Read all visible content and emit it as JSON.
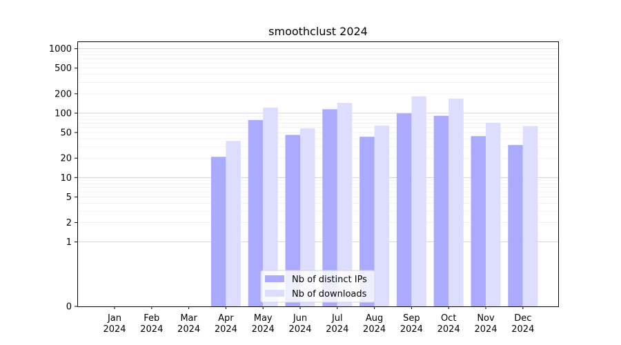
{
  "chart_data": {
    "type": "bar",
    "title": "smoothclust 2024",
    "xlabel": "",
    "ylabel": "",
    "y_scale": "symlog",
    "yticks": [
      "0",
      "1",
      "2",
      "5",
      "10",
      "20",
      "50",
      "100",
      "200",
      "500",
      "1000"
    ],
    "categories": [
      {
        "month": "Jan",
        "year": "2024"
      },
      {
        "month": "Feb",
        "year": "2024"
      },
      {
        "month": "Mar",
        "year": "2024"
      },
      {
        "month": "Apr",
        "year": "2024"
      },
      {
        "month": "May",
        "year": "2024"
      },
      {
        "month": "Jun",
        "year": "2024"
      },
      {
        "month": "Jul",
        "year": "2024"
      },
      {
        "month": "Aug",
        "year": "2024"
      },
      {
        "month": "Sep",
        "year": "2024"
      },
      {
        "month": "Oct",
        "year": "2024"
      },
      {
        "month": "Nov",
        "year": "2024"
      },
      {
        "month": "Dec",
        "year": "2024"
      }
    ],
    "series": [
      {
        "name": "Nb of distinct IPs",
        "color": "#aaaaff",
        "values": [
          0,
          0,
          0,
          21,
          78,
          46,
          115,
          43,
          99,
          91,
          44,
          32
        ]
      },
      {
        "name": "Nb of downloads",
        "color": "#ddddff",
        "values": [
          0,
          0,
          0,
          37,
          122,
          58,
          144,
          64,
          182,
          168,
          71,
          63
        ]
      }
    ],
    "ylim": [
      0,
      1300
    ],
    "grid": true,
    "legend_position": "bottom-center"
  }
}
